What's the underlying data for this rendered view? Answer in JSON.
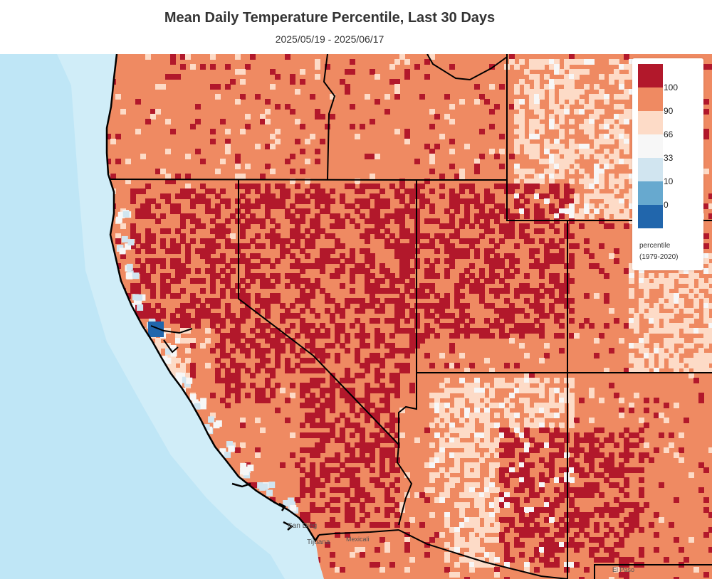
{
  "title": "Mean Daily Temperature Percentile, Last 30 Days",
  "subtitle": "2025/05/19 - 2025/06/17",
  "colors": {
    "ocean": "#bfe6f6",
    "ocean_shallow": "#d7f0fa",
    "mexico_land": "#f3f3f3",
    "cls_100": "#b2182b",
    "cls_90": "#ef8a62",
    "cls_66": "#fddbc7",
    "cls_33": "#f7f7f7",
    "cls_10": "#d1e5f0",
    "cls_0": "#67a9cf",
    "cls_min": "#2166ac"
  },
  "legend": {
    "ticks": [
      "100",
      "90",
      "66",
      "33",
      "10",
      "0"
    ],
    "label": "percentile",
    "period": "(1979-2020)"
  },
  "map_labels": {
    "san_diego": "San Dieg",
    "tijuana": "Tijuana",
    "mexicali": "Mexicali",
    "el_paso": "El Paso"
  }
}
